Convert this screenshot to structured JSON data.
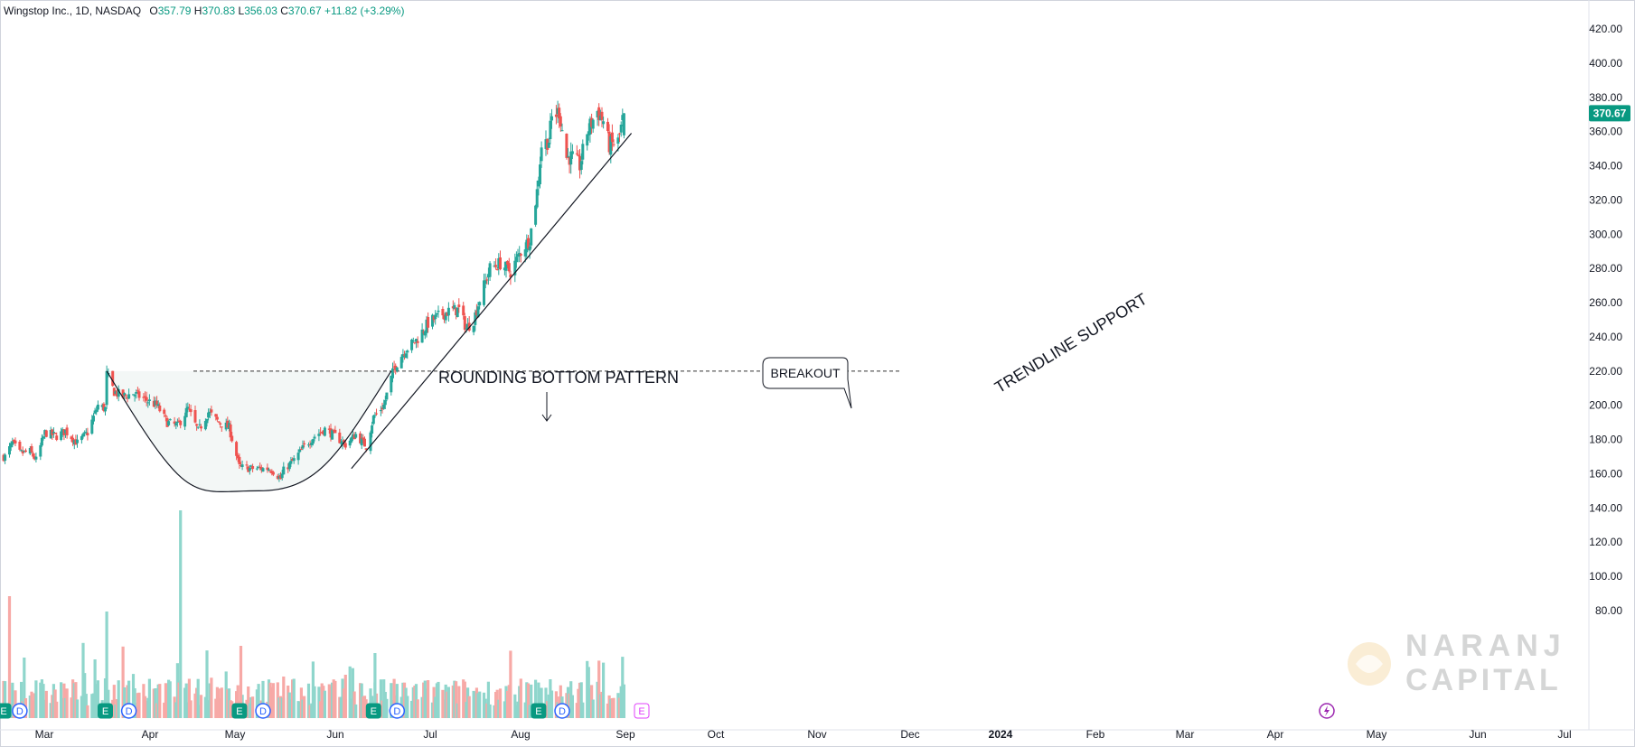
{
  "header": {
    "symbol": "Wingstop Inc., 1D, NASDAQ",
    "open_label": "O",
    "open": "357.79",
    "high_label": "H",
    "high": "370.83",
    "low_label": "L",
    "low": "356.03",
    "close_label": "C",
    "close": "370.67",
    "change": "+11.82 (+3.29%)"
  },
  "last_price_badge": "370.67",
  "watermark": {
    "line1": "NARANJ",
    "line2": "CAPITAL"
  },
  "annotations": {
    "pattern": "ROUNDING BOTTOM PATTERN",
    "breakout": "BREAKOUT",
    "trendline": "TRENDLINE SUPPORT"
  },
  "colors": {
    "up": "#26a69a",
    "down": "#ef5350",
    "up_volume": "#8fd6cc",
    "down_volume": "#f7a9a6",
    "badge": "#089981",
    "earnings": "#089981",
    "dividend": "#2962ff",
    "future_earnings": "#e040fb"
  },
  "chart_data": {
    "type": "candlestick",
    "title": "Wingstop Inc., 1D, NASDAQ",
    "y_axis": {
      "position": "right",
      "ticks": [
        "420.00",
        "400.00",
        "380.00",
        "360.00",
        "340.00",
        "320.00",
        "300.00",
        "280.00",
        "260.00",
        "240.00",
        "220.00",
        "200.00",
        "180.00",
        "160.00",
        "140.00",
        "120.00",
        "100.00",
        "80.00"
      ],
      "ylim": [
        76,
        427
      ]
    },
    "x_axis": {
      "ticks": [
        "Mar",
        "Apr",
        "May",
        "Jun",
        "Jul",
        "Aug",
        "Sep",
        "Oct",
        "Nov",
        "Dec",
        "2024",
        "Feb",
        "Mar",
        "Apr",
        "May",
        "Jun",
        "Jul"
      ]
    },
    "grid": false,
    "price_anchors": [
      [
        "2023-02-24",
        170
      ],
      [
        "2023-03-01",
        178
      ],
      [
        "2023-03-06",
        172
      ],
      [
        "2023-03-13",
        173
      ],
      [
        "2023-03-17",
        168
      ],
      [
        "2023-03-23",
        184
      ],
      [
        "2023-03-31",
        182
      ],
      [
        "2023-04-06",
        185
      ],
      [
        "2023-04-14",
        178
      ],
      [
        "2023-04-21",
        184
      ],
      [
        "2023-04-28",
        200
      ],
      [
        "2023-05-03",
        198
      ],
      [
        "2023-05-04",
        218
      ],
      [
        "2023-05-09",
        208
      ],
      [
        "2023-05-15",
        205
      ],
      [
        "2023-05-22",
        207
      ],
      [
        "2023-05-31",
        203
      ],
      [
        "2023-06-07",
        200
      ],
      [
        "2023-06-14",
        190
      ],
      [
        "2023-06-21",
        188
      ],
      [
        "2023-06-28",
        198
      ],
      [
        "2023-07-05",
        185
      ],
      [
        "2023-07-12",
        196
      ],
      [
        "2023-07-19",
        190
      ],
      [
        "2023-07-26",
        187
      ],
      [
        "2023-08-02",
        164
      ],
      [
        "2023-08-09",
        163
      ],
      [
        "2023-08-16",
        163
      ],
      [
        "2023-08-23",
        163
      ],
      [
        "2023-08-30",
        157
      ],
      [
        "2023-09-01",
        162
      ],
      [
        "2023-09-08",
        168
      ],
      [
        "2023-09-15",
        176
      ],
      [
        "2023-09-22",
        182
      ],
      [
        "2023-09-29",
        186
      ],
      [
        "2023-10-06",
        182
      ],
      [
        "2023-10-13",
        177
      ],
      [
        "2023-10-20",
        183
      ],
      [
        "2023-10-27",
        176
      ],
      [
        "2023-11-01",
        193
      ],
      [
        "2023-11-08",
        200
      ],
      [
        "2023-11-15",
        222
      ],
      [
        "2023-11-22",
        232
      ],
      [
        "2023-11-30",
        238
      ],
      [
        "2023-12-08",
        248
      ],
      [
        "2023-12-15",
        252
      ],
      [
        "2023-12-22",
        255
      ],
      [
        "2023-12-29",
        256
      ],
      [
        "2024-01-03",
        245
      ],
      [
        "2024-01-08",
        250
      ],
      [
        "2024-01-12",
        262
      ],
      [
        "2024-01-19",
        280
      ],
      [
        "2024-01-26",
        283
      ],
      [
        "2024-02-02",
        278
      ],
      [
        "2024-02-09",
        290
      ],
      [
        "2024-02-15",
        297
      ],
      [
        "2024-02-20",
        325
      ],
      [
        "2024-02-23",
        352
      ],
      [
        "2024-02-28",
        355
      ],
      [
        "2024-03-01",
        368
      ],
      [
        "2024-03-06",
        372
      ],
      [
        "2024-03-11",
        345
      ],
      [
        "2024-03-15",
        345
      ],
      [
        "2024-03-20",
        340
      ],
      [
        "2024-03-25",
        360
      ],
      [
        "2024-04-01",
        372
      ],
      [
        "2024-04-05",
        366
      ],
      [
        "2024-04-09",
        352
      ],
      [
        "2024-04-15",
        354
      ],
      [
        "2024-04-19",
        370.67
      ]
    ],
    "last_bar": {
      "date": "2024-04-19",
      "open": 357.79,
      "high": 370.83,
      "low": 356.03,
      "close": 370.67
    },
    "events": [
      {
        "type": "E",
        "date": "2023-02-23",
        "label": "E"
      },
      {
        "type": "D",
        "date": "2023-03-06",
        "label": "D"
      },
      {
        "type": "E",
        "date": "2023-05-03",
        "label": "E"
      },
      {
        "type": "D",
        "date": "2023-05-19",
        "label": "D"
      },
      {
        "type": "E",
        "date": "2023-08-02",
        "label": "E"
      },
      {
        "type": "D",
        "date": "2023-08-18",
        "label": "D"
      },
      {
        "type": "E",
        "date": "2023-11-01",
        "label": "E"
      },
      {
        "type": "D",
        "date": "2023-11-17",
        "label": "D"
      },
      {
        "type": "E",
        "date": "2024-02-21",
        "label": "E"
      },
      {
        "type": "D",
        "date": "2024-03-08",
        "label": "D"
      },
      {
        "type": "E",
        "date": "2024-05-01",
        "label": "E"
      }
    ],
    "resistance_level": 220,
    "trendline": {
      "from": [
        "2023-10-17",
        163
      ],
      "to": [
        "2024-04-24",
        359
      ]
    },
    "rounding_bottom": {
      "from": [
        "2023-05-04",
        220
      ],
      "bottom": [
        "2023-08-15",
        150
      ],
      "to": [
        "2023-11-13",
        220
      ]
    }
  }
}
